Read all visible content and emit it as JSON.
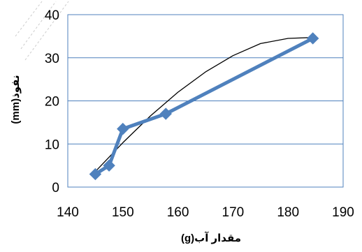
{
  "chart_data": {
    "type": "line",
    "title": "",
    "xlabel": "مقدار آب(g)",
    "ylabel": "نفوذ(mm)",
    "xlim": [
      140,
      190
    ],
    "ylim": [
      0,
      40
    ],
    "xticks": [
      140,
      150,
      160,
      170,
      180,
      190
    ],
    "yticks": [
      0,
      10,
      20,
      30,
      40
    ],
    "grid": {
      "horizontal": true,
      "vertical": false
    },
    "legend": "none",
    "series": [
      {
        "style": "line-markers",
        "color": "#4f81bd",
        "marker": "diamond",
        "points": [
          {
            "x": 145,
            "y": 3
          },
          {
            "x": 147.5,
            "y": 5
          },
          {
            "x": 150,
            "y": 13.5
          },
          {
            "x": 157.8,
            "y": 17
          },
          {
            "x": 184.5,
            "y": 34.5
          }
        ]
      },
      {
        "style": "trendline",
        "color": "#000000",
        "fit": "polynomial-2",
        "points": [
          {
            "x": 145,
            "y": 3.6
          },
          {
            "x": 150,
            "y": 10.3
          },
          {
            "x": 155,
            "y": 16.5
          },
          {
            "x": 160,
            "y": 22.0
          },
          {
            "x": 165,
            "y": 26.7
          },
          {
            "x": 170,
            "y": 30.5
          },
          {
            "x": 175,
            "y": 33.3
          },
          {
            "x": 180,
            "y": 34.5
          },
          {
            "x": 184.5,
            "y": 34.7
          }
        ]
      }
    ]
  }
}
